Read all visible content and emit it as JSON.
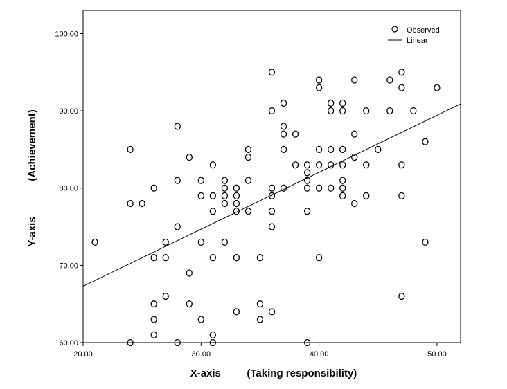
{
  "chart_data": {
    "type": "scatter",
    "xlabel": "X-axis         (Taking responsibility)",
    "ylabel_lines": [
      "Y-axis",
      "(Achievement)"
    ],
    "xlim": [
      20,
      52
    ],
    "ylim": [
      60,
      103
    ],
    "x_ticks": [
      20,
      30,
      40,
      50
    ],
    "x_tick_labels": [
      "20.00",
      "30.00",
      "40.00",
      "50.00"
    ],
    "y_ticks": [
      60,
      70,
      80,
      90,
      100
    ],
    "y_tick_labels": [
      "60.00",
      "70.00",
      "80.00",
      "90.00",
      "100.00"
    ],
    "grid": false,
    "legend": {
      "position": "top-right",
      "entries": [
        {
          "label": "Observed",
          "marker": "circle"
        },
        {
          "label": "Linear",
          "marker": "line"
        }
      ]
    },
    "series": [
      {
        "name": "Observed",
        "points": [
          [
            21,
            73
          ],
          [
            24,
            85
          ],
          [
            24,
            78
          ],
          [
            24,
            60
          ],
          [
            25,
            78
          ],
          [
            26,
            80
          ],
          [
            26,
            71
          ],
          [
            26,
            65
          ],
          [
            26,
            63
          ],
          [
            26,
            61
          ],
          [
            27,
            73
          ],
          [
            27,
            71
          ],
          [
            27,
            66
          ],
          [
            28,
            88
          ],
          [
            28,
            81
          ],
          [
            28,
            75
          ],
          [
            28,
            60
          ],
          [
            29,
            84
          ],
          [
            29,
            69
          ],
          [
            29,
            65
          ],
          [
            30,
            81
          ],
          [
            30,
            79
          ],
          [
            30,
            73
          ],
          [
            30,
            63
          ],
          [
            31,
            83
          ],
          [
            31,
            79
          ],
          [
            31,
            77
          ],
          [
            31,
            71
          ],
          [
            31,
            61
          ],
          [
            31,
            60
          ],
          [
            32,
            81
          ],
          [
            32,
            80
          ],
          [
            32,
            79
          ],
          [
            32,
            78
          ],
          [
            32,
            73
          ],
          [
            33,
            80
          ],
          [
            33,
            79
          ],
          [
            33,
            78
          ],
          [
            33,
            77
          ],
          [
            33,
            71
          ],
          [
            33,
            64
          ],
          [
            34,
            85
          ],
          [
            34,
            84
          ],
          [
            34,
            81
          ],
          [
            34,
            77
          ],
          [
            35,
            71
          ],
          [
            35,
            65
          ],
          [
            35,
            63
          ],
          [
            36,
            95
          ],
          [
            36,
            90
          ],
          [
            36,
            80
          ],
          [
            36,
            79
          ],
          [
            36,
            77
          ],
          [
            36,
            75
          ],
          [
            36,
            64
          ],
          [
            37,
            91
          ],
          [
            37,
            88
          ],
          [
            37,
            87
          ],
          [
            37,
            85
          ],
          [
            37,
            80
          ],
          [
            38,
            87
          ],
          [
            38,
            83
          ],
          [
            39,
            83
          ],
          [
            39,
            82
          ],
          [
            39,
            81
          ],
          [
            39,
            80
          ],
          [
            39,
            77
          ],
          [
            39,
            60
          ],
          [
            40,
            94
          ],
          [
            40,
            93
          ],
          [
            40,
            85
          ],
          [
            40,
            83
          ],
          [
            40,
            80
          ],
          [
            40,
            71
          ],
          [
            41,
            91
          ],
          [
            41,
            90
          ],
          [
            41,
            85
          ],
          [
            41,
            83
          ],
          [
            41,
            80
          ],
          [
            42,
            91
          ],
          [
            42,
            90
          ],
          [
            42,
            85
          ],
          [
            42,
            83
          ],
          [
            42,
            81
          ],
          [
            42,
            80
          ],
          [
            42,
            79
          ],
          [
            43,
            94
          ],
          [
            43,
            87
          ],
          [
            43,
            84
          ],
          [
            43,
            78
          ],
          [
            44,
            90
          ],
          [
            44,
            83
          ],
          [
            44,
            79
          ],
          [
            45,
            85
          ],
          [
            46,
            94
          ],
          [
            46,
            90
          ],
          [
            47,
            95
          ],
          [
            47,
            93
          ],
          [
            47,
            83
          ],
          [
            47,
            79
          ],
          [
            47,
            66
          ],
          [
            48,
            90
          ],
          [
            49,
            86
          ],
          [
            49,
            73
          ],
          [
            50,
            93
          ]
        ]
      },
      {
        "name": "Linear",
        "type": "line",
        "points": [
          [
            20,
            67.3
          ],
          [
            52,
            90.9
          ]
        ]
      }
    ]
  }
}
